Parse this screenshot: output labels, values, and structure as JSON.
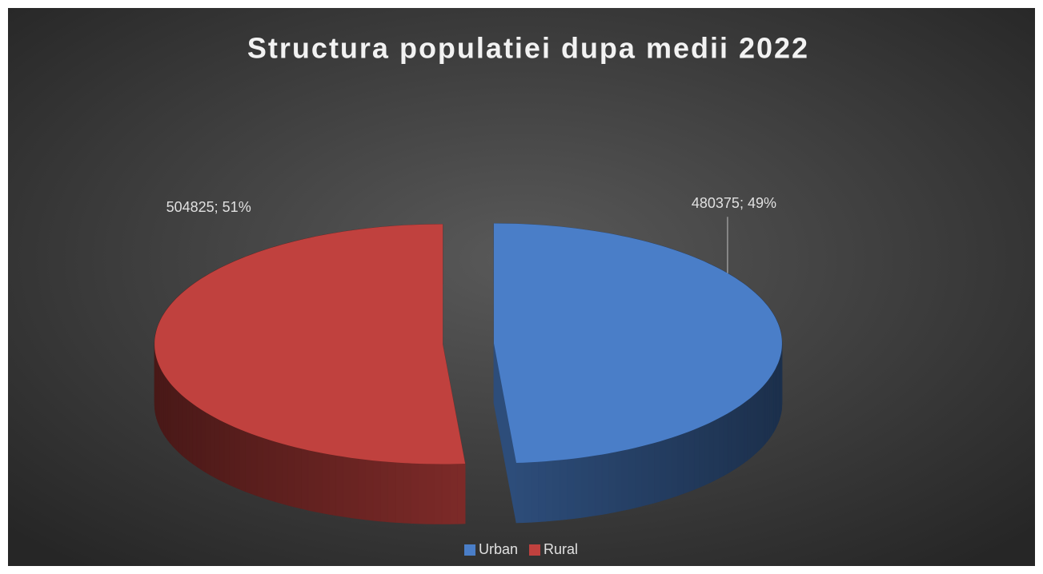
{
  "chart_data": {
    "type": "pie3d",
    "title": "Structura populatiei dupa medii 2022",
    "categories": [
      "Urban",
      "Rural"
    ],
    "values": [
      480375,
      504825
    ],
    "value_labels": [
      "480375; 49%",
      "504825; 51%"
    ],
    "colors": [
      "#4a7ec8",
      "#c0413e"
    ],
    "legend": "bottom"
  }
}
